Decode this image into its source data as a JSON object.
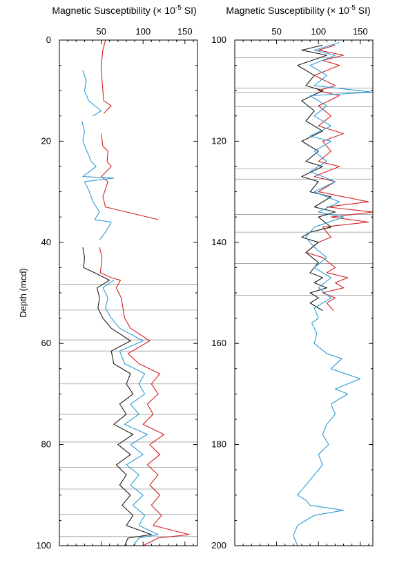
{
  "chart_data": [
    {
      "type": "line",
      "title": "",
      "xlabel": "Magnetic Susceptibility (× 10",
      "xlabel_exp": "-5",
      "xlabel_unit": " SI)",
      "ylabel": "Depth (mcd)",
      "ylim": [
        0,
        100
      ],
      "y_reversed": true,
      "xlim": [
        0,
        165
      ],
      "x_ticks": [
        50,
        100,
        150
      ],
      "y_ticks": [
        0,
        20,
        40,
        60,
        80,
        100
      ],
      "grid": "horizontal tie lines",
      "tie_depths": [
        48.3,
        53.4,
        59.3,
        61.5,
        68.0,
        74.0,
        79.5,
        84.5,
        88.8,
        93.8,
        98.2
      ],
      "series": [
        {
          "color": "#d42020",
          "points": [
            [
              55,
              0
            ],
            [
              52,
              2
            ],
            [
              50,
              5
            ],
            [
              51,
              8
            ],
            [
              53,
              12
            ],
            [
              62,
              13
            ],
            [
              53,
              14.5
            ],
            null,
            [
              50,
              18.5
            ],
            [
              52,
              21
            ],
            [
              58,
              22
            ],
            [
              57,
              24
            ],
            [
              62,
              25
            ],
            [
              50,
              27
            ],
            [
              58,
              28
            ],
            [
              52,
              31
            ],
            [
              55,
              33
            ],
            [
              118,
              35.5
            ],
            null,
            [
              48,
              41
            ],
            [
              51,
              43
            ],
            [
              49,
              46
            ],
            [
              62,
              47
            ],
            [
              73,
              47.5
            ],
            [
              68,
              49
            ],
            [
              74,
              51
            ],
            [
              76,
              53
            ],
            [
              78,
              55
            ],
            [
              85,
              57
            ],
            [
              108,
              59.5
            ],
            [
              82,
              62
            ],
            [
              95,
              64
            ],
            [
              120,
              66
            ],
            [
              110,
              68
            ],
            [
              118,
              70
            ],
            [
              105,
              72
            ],
            [
              112,
              74
            ],
            [
              100,
              76
            ],
            [
              125,
              78
            ],
            [
              108,
              80
            ],
            [
              120,
              82
            ],
            [
              105,
              84
            ],
            [
              118,
              86
            ],
            [
              108,
              88
            ],
            [
              120,
              90
            ],
            [
              110,
              92
            ],
            [
              122,
              94
            ],
            [
              112,
              96
            ],
            [
              155,
              97.8
            ],
            [
              118,
              98.5
            ],
            [
              100,
              100
            ]
          ]
        },
        {
          "color": "#1a1a1a",
          "points": [
            [
              28,
              41
            ],
            [
              30,
              43
            ],
            [
              29,
              45
            ],
            [
              42,
              46
            ],
            [
              60,
              47.5
            ],
            [
              45,
              49
            ],
            [
              48,
              51
            ],
            [
              46,
              53
            ],
            [
              52,
              55
            ],
            [
              62,
              57
            ],
            [
              85,
              59.5
            ],
            [
              62,
              61.5
            ],
            [
              65,
              64
            ],
            [
              85,
              66
            ],
            [
              80,
              68
            ],
            [
              88,
              70
            ],
            [
              72,
              72
            ],
            [
              80,
              74
            ],
            [
              65,
              76
            ],
            [
              88,
              78
            ],
            [
              70,
              80
            ],
            [
              85,
              82
            ],
            [
              68,
              84
            ],
            [
              80,
              86
            ],
            [
              72,
              88
            ],
            [
              85,
              90
            ],
            [
              75,
              92
            ],
            [
              88,
              94
            ],
            [
              80,
              96
            ],
            [
              110,
              97.8
            ],
            [
              82,
              98.5
            ],
            [
              78,
              100
            ]
          ]
        },
        {
          "color": "#2c9ad6",
          "points": [
            [
              28,
              6
            ],
            [
              32,
              8
            ],
            [
              30,
              10
            ],
            [
              35,
              12
            ],
            [
              50,
              14
            ],
            [
              40,
              15
            ],
            null,
            [
              27,
              16
            ],
            [
              30,
              18
            ],
            [
              28,
              20
            ],
            [
              33,
              22
            ],
            [
              38,
              24
            ],
            [
              44,
              25
            ],
            [
              28,
              27
            ],
            [
              65,
              27.3
            ],
            [
              30,
              28
            ],
            [
              36,
              30
            ],
            [
              40,
              32
            ],
            [
              48,
              34
            ],
            [
              42,
              35.5
            ],
            [
              62,
              36
            ],
            [
              55,
              38
            ],
            [
              48,
              39.5
            ],
            null,
            [
              65,
              47.5
            ],
            [
              52,
              49
            ],
            [
              58,
              51
            ],
            [
              55,
              53
            ],
            [
              62,
              55
            ],
            [
              72,
              57
            ],
            [
              100,
              59.5
            ],
            [
              72,
              61.5
            ],
            [
              78,
              64
            ],
            [
              102,
              66
            ],
            [
              95,
              68
            ],
            [
              102,
              70
            ],
            [
              85,
              72
            ],
            [
              95,
              74
            ],
            [
              78,
              76
            ],
            [
              105,
              78
            ],
            [
              85,
              80
            ],
            [
              100,
              82
            ],
            [
              80,
              84
            ],
            [
              95,
              86
            ],
            [
              85,
              88
            ],
            [
              100,
              90
            ],
            [
              88,
              92
            ],
            [
              102,
              94
            ],
            [
              95,
              96
            ],
            [
              118,
              97.8
            ],
            [
              95,
              98.5
            ],
            [
              88,
              100
            ]
          ]
        }
      ]
    },
    {
      "type": "line",
      "title": "",
      "xlabel": "Magnetic Susceptibility (× 10",
      "xlabel_exp": "-5",
      "xlabel_unit": " SI)",
      "ylabel": "",
      "ylim": [
        100,
        200
      ],
      "y_reversed": true,
      "xlim": [
        0,
        165
      ],
      "x_ticks": [
        50,
        100,
        150
      ],
      "y_ticks": [
        100,
        120,
        140,
        160,
        180,
        200
      ],
      "grid": "horizontal tie lines",
      "tie_depths": [
        103.5,
        109.5,
        110.3,
        113.2,
        125.5,
        127.5,
        134.5,
        138.0,
        144.2,
        150.5
      ],
      "series": [
        {
          "color": "#d42020",
          "points": [
            [
              120,
              101
            ],
            [
              100,
              102
            ],
            [
              130,
              103
            ],
            [
              105,
              104
            ],
            [
              125,
              105
            ],
            [
              95,
              107
            ],
            [
              120,
              109
            ],
            [
              100,
              110
            ],
            [
              125,
              111
            ],
            [
              100,
              113
            ],
            [
              115,
              115
            ],
            [
              100,
              117
            ],
            [
              130,
              118.5
            ],
            [
              105,
              120
            ],
            [
              115,
              122
            ],
            [
              100,
              124
            ],
            [
              125,
              125
            ],
            [
              95,
              127
            ],
            [
              120,
              128
            ],
            [
              100,
              130
            ],
            [
              130,
              131
            ],
            [
              160,
              132
            ],
            [
              110,
              133
            ],
            [
              165,
              134
            ],
            [
              115,
              135
            ],
            [
              160,
              136
            ],
            [
              105,
              137
            ],
            [
              115,
              139
            ],
            [
              100,
              140
            ],
            [
              85,
              142
            ],
            [
              105,
              143
            ],
            [
              120,
              145
            ],
            [
              110,
              146
            ],
            [
              135,
              147
            ],
            [
              120,
              148
            ],
            [
              130,
              149
            ],
            [
              105,
              150
            ],
            [
              120,
              151
            ],
            [
              110,
              152
            ],
            [
              118,
              153.5
            ]
          ]
        },
        {
          "color": "#1a1a1a",
          "points": [
            [
              105,
              101
            ],
            [
              80,
              102
            ],
            [
              110,
              103
            ],
            [
              75,
              105
            ],
            [
              95,
              107
            ],
            [
              85,
              109
            ],
            [
              105,
              110
            ],
            [
              80,
              112
            ],
            [
              95,
              114
            ],
            [
              85,
              116
            ],
            [
              105,
              118
            ],
            [
              80,
              120
            ],
            [
              100,
              122
            ],
            [
              85,
              124
            ],
            [
              105,
              125
            ],
            [
              80,
              127
            ],
            [
              100,
              128
            ],
            [
              90,
              130
            ],
            [
              115,
              131
            ],
            [
              95,
              133
            ],
            [
              120,
              134
            ],
            [
              100,
              135
            ],
            [
              115,
              137
            ],
            [
              90,
              138
            ],
            [
              80,
              139
            ],
            [
              100,
              140
            ],
            [
              85,
              142
            ],
            [
              100,
              144
            ],
            [
              90,
              146
            ],
            [
              105,
              147
            ],
            [
              95,
              148
            ],
            [
              110,
              149
            ],
            [
              90,
              150
            ],
            [
              100,
              151
            ],
            [
              90,
              152
            ],
            [
              105,
              153.5
            ]
          ]
        },
        {
          "color": "#2c9ad6",
          "points": [
            [
              125,
              100.5
            ],
            [
              95,
              102
            ],
            [
              120,
              103
            ],
            [
              90,
              105
            ],
            [
              110,
              107
            ],
            [
              95,
              109
            ],
            [
              165,
              110.3
            ],
            [
              90,
              111
            ],
            [
              110,
              113
            ],
            [
              95,
              115
            ],
            [
              115,
              117
            ],
            [
              90,
              119
            ],
            [
              115,
              120
            ],
            [
              95,
              122
            ],
            [
              110,
              124
            ],
            [
              90,
              126
            ],
            [
              120,
              128
            ],
            [
              95,
              130
            ],
            [
              125,
              132
            ],
            [
              100,
              134
            ],
            [
              130,
              135
            ],
            [
              95,
              137
            ],
            [
              85,
              139
            ],
            [
              95,
              141
            ],
            [
              110,
              143
            ],
            [
              95,
              145
            ],
            [
              115,
              147
            ],
            [
              100,
              149
            ],
            [
              115,
              151
            ],
            [
              95,
              153
            ],
            [
              100,
              155
            ],
            [
              92,
              156
            ],
            [
              98,
              158
            ],
            [
              95,
              160
            ],
            [
              110,
              162
            ],
            [
              128,
              163
            ],
            [
              115,
              165
            ],
            [
              150,
              167
            ],
            [
              120,
              169
            ],
            [
              135,
              170
            ],
            [
              115,
              172
            ],
            [
              120,
              174
            ],
            [
              110,
              176
            ],
            [
              105,
              178
            ],
            [
              112,
              180
            ],
            [
              100,
              182
            ],
            [
              105,
              184
            ],
            [
              95,
              186
            ],
            [
              85,
              188
            ],
            [
              75,
              190
            ],
            [
              85,
              191
            ],
            [
              90,
              192
            ],
            [
              130,
              193
            ],
            [
              95,
              194
            ],
            [
              85,
              195
            ],
            [
              75,
              196
            ],
            [
              70,
              198
            ],
            [
              75,
              200
            ]
          ]
        }
      ]
    }
  ]
}
